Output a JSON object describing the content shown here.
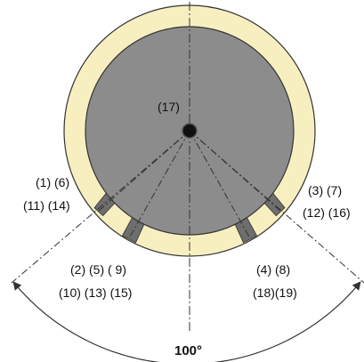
{
  "colors": {
    "ring": "#f8efc1",
    "disk": "#8c8c8c",
    "slot": "#6e6e6e",
    "outline": "#333333",
    "hub": "#111111",
    "line": "#333333"
  },
  "labels": {
    "center": "(17)",
    "left_upper_1": "(1) (6)",
    "left_upper_2": "(11) (14)",
    "left_lower_1": "(2) (5) (  9)",
    "left_lower_2": "(10) (13) (15)",
    "right_upper_1": "(3) (7)",
    "right_upper_2": "(12) (16)",
    "right_lower_1": "(4) (8)",
    "right_lower_2": "(18)(19)",
    "angle": "100°"
  }
}
